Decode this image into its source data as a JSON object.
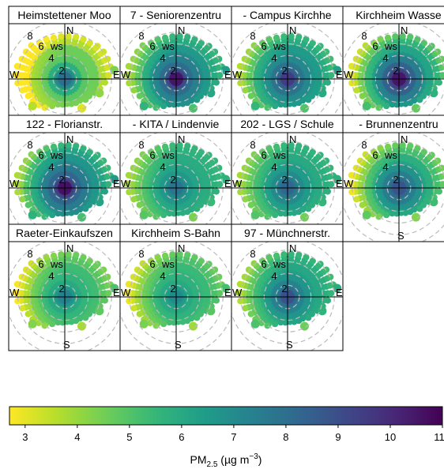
{
  "chart_data": {
    "type": "polar-plot",
    "panels": [
      {
        "title": "Heimstettener Moo",
        "profile": [
          8.0,
          7.0,
          5.8,
          4.9,
          4.6,
          4.6,
          3.7,
          3.2,
          3.3,
          3.6
        ]
      },
      {
        "title": "7 - Seniorenzentru",
        "profile": [
          10.5,
          9.2,
          8.1,
          7.4,
          7.0,
          6.6,
          6.0,
          5.6,
          5.5,
          5.6
        ]
      },
      {
        "title": "- Campus Kirchhe",
        "profile": [
          9.5,
          8.6,
          7.8,
          7.1,
          6.7,
          6.5,
          5.9,
          5.5,
          5.3,
          5.2
        ]
      },
      {
        "title": "Kirchheim Wasse",
        "profile": [
          10.5,
          9.4,
          8.4,
          7.5,
          6.8,
          6.2,
          5.6,
          5.0,
          4.7,
          4.5
        ]
      },
      {
        "title": "122 - Florianstr.",
        "profile": [
          10.6,
          9.4,
          8.3,
          7.6,
          7.1,
          6.7,
          6.2,
          5.6,
          5.4,
          5.5
        ]
      },
      {
        "title": "- KITA / Lindenvie",
        "profile": [
          7.8,
          7.2,
          6.6,
          6.2,
          6.0,
          5.9,
          5.7,
          5.5,
          5.5,
          5.6
        ]
      },
      {
        "title": "202 - LGS / Schule",
        "profile": [
          8.3,
          7.7,
          7.0,
          6.5,
          6.2,
          6.0,
          5.8,
          5.6,
          5.5,
          5.4
        ]
      },
      {
        "title": "- Brunnenzentru",
        "profile": [
          8.8,
          8.2,
          7.5,
          6.8,
          6.2,
          5.8,
          5.2,
          4.8,
          4.5,
          4.3
        ]
      },
      {
        "title": "Raeter-Einkaufszen",
        "profile": [
          7.3,
          6.7,
          6.0,
          5.6,
          5.4,
          5.3,
          4.9,
          4.6,
          4.4,
          4.3
        ]
      },
      {
        "title": "Kirchheim S-Bahn",
        "profile": [
          7.0,
          6.5,
          6.0,
          5.7,
          5.5,
          5.4,
          5.1,
          4.8,
          4.6,
          4.5
        ]
      },
      {
        "title": "97 - Münchnerstr.",
        "profile": [
          8.9,
          8.1,
          7.3,
          6.7,
          6.3,
          6.1,
          5.8,
          5.5,
          5.3,
          5.2
        ]
      }
    ],
    "radial_axis": {
      "label": "ws",
      "ticks": [
        "2",
        "4",
        "6",
        "8"
      ],
      "range": [
        0,
        10
      ]
    },
    "compass": {
      "north": "N",
      "east": "E",
      "south": "S",
      "west": "W"
    },
    "colorbar": {
      "palette": "viridis (reversed: yellow = low, purple = high)",
      "range": [
        2.7,
        11
      ],
      "ticks": [
        "3",
        "4",
        "5",
        "6",
        "7",
        "8",
        "9",
        "10",
        "11"
      ],
      "label": {
        "main": "PM",
        "sub": "2.5",
        "unit_open": " (µg m",
        "sup": "−3",
        "unit_close": ")"
      }
    }
  }
}
